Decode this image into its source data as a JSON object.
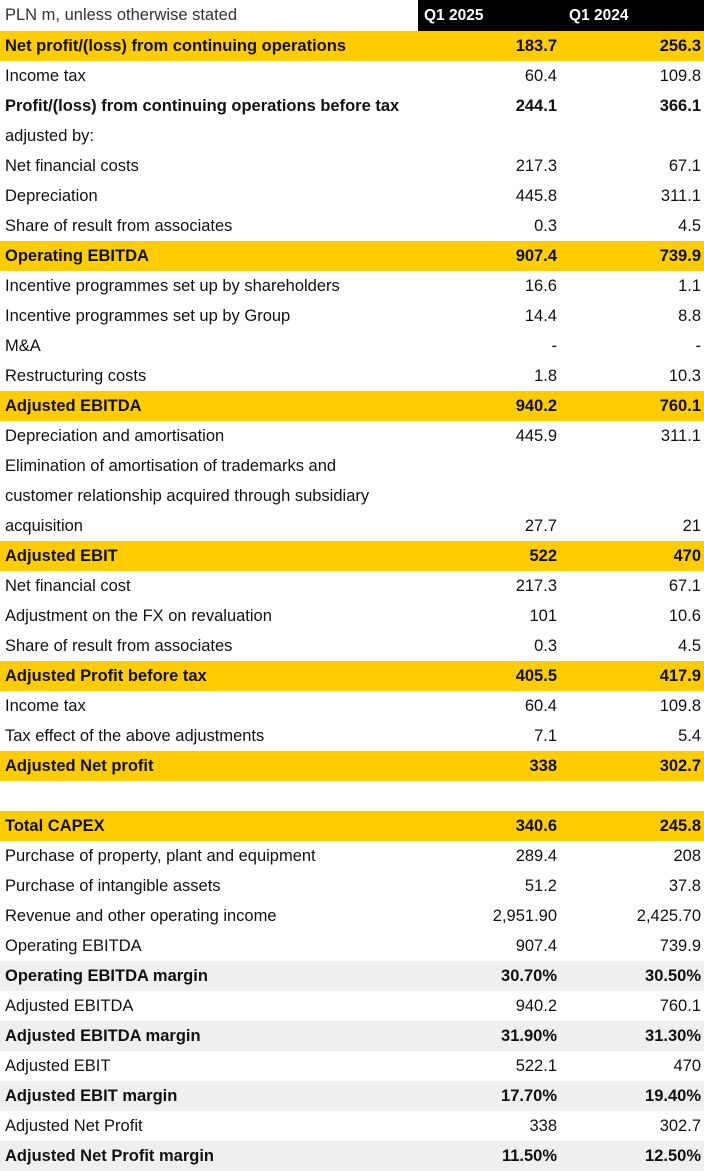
{
  "header": {
    "units": "PLN m, unless otherwise stated",
    "col1": "Q1 2025",
    "col2": "Q1 2024"
  },
  "colors": {
    "highlight": "#ffcc00",
    "header_bg": "#000000",
    "margin_row": "#efefef"
  },
  "rows": [
    {
      "label": "Net profit/(loss) from continuing operations",
      "v1": "183.7",
      "v2": "256.3",
      "style": "highlight"
    },
    {
      "label": "Income tax",
      "v1": "60.4",
      "v2": "109.8",
      "style": "normal"
    },
    {
      "label": "Profit/(loss) from continuing operations before tax",
      "v1": "244.1",
      "v2": "366.1",
      "style": "bold"
    },
    {
      "label": "adjusted by:",
      "v1": "",
      "v2": "",
      "style": "normal"
    },
    {
      "label": "Net financial costs",
      "v1": "217.3",
      "v2": "67.1",
      "style": "normal"
    },
    {
      "label": "Depreciation",
      "v1": "445.8",
      "v2": "311.1",
      "style": "normal"
    },
    {
      "label": "Share of result from associates",
      "v1": "0.3",
      "v2": "4.5",
      "style": "normal"
    },
    {
      "label": "Operating EBITDA",
      "v1": "907.4",
      "v2": "739.9",
      "style": "highlight"
    },
    {
      "label": "Incentive programmes set up by shareholders",
      "v1": "16.6",
      "v2": "1.1",
      "style": "normal"
    },
    {
      "label": "Incentive programmes set up by Group",
      "v1": "14.4",
      "v2": "8.8",
      "style": "normal"
    },
    {
      "label": "M&A",
      "v1": "-",
      "v2": "-",
      "style": "normal"
    },
    {
      "label": "Restructuring costs",
      "v1": "1.8",
      "v2": "10.3",
      "style": "normal"
    },
    {
      "label": "Adjusted EBITDA",
      "v1": "940.2",
      "v2": "760.1",
      "style": "highlight"
    },
    {
      "label": "Depreciation and amortisation",
      "v1": "445.9",
      "v2": "311.1",
      "style": "normal"
    },
    {
      "label": "Elimination of amortisation of trademarks and",
      "v1": "",
      "v2": "",
      "style": "normal"
    },
    {
      "label": "customer relationship acquired through subsidiary",
      "v1": "",
      "v2": "",
      "style": "normal"
    },
    {
      "label": "acquisition",
      "v1": "27.7",
      "v2": "21",
      "style": "normal"
    },
    {
      "label": "Adjusted EBIT",
      "v1": "522",
      "v2": "470",
      "style": "highlight"
    },
    {
      "label": "Net financial cost",
      "v1": "217.3",
      "v2": "67.1",
      "style": "normal"
    },
    {
      "label": "Adjustment on the FX on revaluation",
      "v1": "101",
      "v2": "10.6",
      "style": "normal"
    },
    {
      "label": "Share of result from associates",
      "v1": "0.3",
      "v2": "4.5",
      "style": "normal"
    },
    {
      "label": "Adjusted Profit before tax",
      "v1": "405.5",
      "v2": "417.9",
      "style": "highlight"
    },
    {
      "label": "Income tax",
      "v1": "60.4",
      "v2": "109.8",
      "style": "normal"
    },
    {
      "label": "Tax effect of the above adjustments",
      "v1": "7.1",
      "v2": "5.4",
      "style": "normal"
    },
    {
      "label": "Adjusted Net profit",
      "v1": "338",
      "v2": "302.7",
      "style": "highlight"
    },
    {
      "label": "",
      "v1": "",
      "v2": "",
      "style": "blank"
    },
    {
      "label": "Total CAPEX",
      "v1": "340.6",
      "v2": "245.8",
      "style": "highlight"
    },
    {
      "label": "Purchase of property, plant and equipment",
      "v1": "289.4",
      "v2": "208",
      "style": "normal"
    },
    {
      "label": "Purchase of intangible assets",
      "v1": "51.2",
      "v2": "37.8",
      "style": "normal"
    },
    {
      "label": "Revenue and other operating income",
      "v1": "2,951.90",
      "v2": "2,425.70",
      "style": "normal"
    },
    {
      "label": "Operating EBITDA",
      "v1": "907.4",
      "v2": "739.9",
      "style": "normal"
    },
    {
      "label": "Operating EBITDA margin",
      "v1": "30.70%",
      "v2": "30.50%",
      "style": "grey"
    },
    {
      "label": "Adjusted EBITDA",
      "v1": "940.2",
      "v2": "760.1",
      "style": "normal"
    },
    {
      "label": "Adjusted EBITDA margin",
      "v1": "31.90%",
      "v2": "31.30%",
      "style": "grey"
    },
    {
      "label": "Adjusted EBIT",
      "v1": "522.1",
      "v2": "470",
      "style": "normal"
    },
    {
      "label": "Adjusted EBIT margin",
      "v1": "17.70%",
      "v2": "19.40%",
      "style": "grey"
    },
    {
      "label": "Adjusted Net Profit",
      "v1": "338",
      "v2": "302.7",
      "style": "normal"
    },
    {
      "label": "Adjusted Net Profit margin",
      "v1": "11.50%",
      "v2": "12.50%",
      "style": "grey"
    }
  ]
}
